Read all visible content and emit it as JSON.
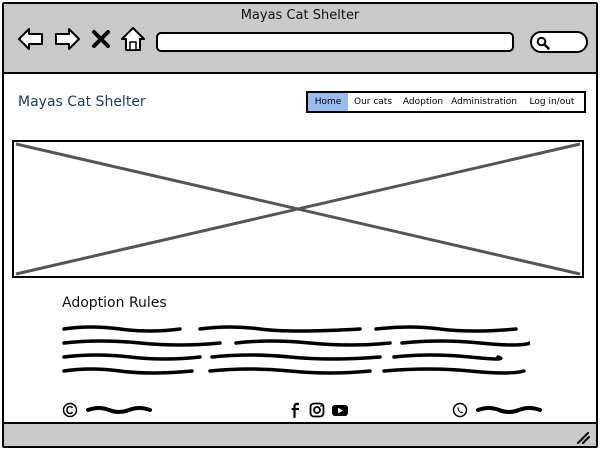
{
  "window": {
    "title": "Mayas Cat Shelter"
  },
  "browser": {
    "address_value": "",
    "icons": [
      "back-arrow-icon",
      "forward-arrow-icon",
      "close-x-icon",
      "home-icon",
      "search-icon"
    ]
  },
  "site": {
    "title": "Mayas Cat Shelter"
  },
  "menu": {
    "items": [
      {
        "label": "Home",
        "active": true
      },
      {
        "label": "Our cats",
        "active": false
      },
      {
        "label": "Adoption",
        "active": false
      },
      {
        "label": "Administration",
        "active": false
      },
      {
        "label": "Log in/out",
        "active": false
      }
    ]
  },
  "content": {
    "heading": "Adoption Rules"
  },
  "footer": {
    "icons": [
      "copyright-icon",
      "facebook-icon",
      "instagram-icon",
      "youtube-icon",
      "phone-icon"
    ]
  },
  "colors": {
    "chrome": "#c9c9c9",
    "site_title": "#1f3b66",
    "menu_active": "#99bbee"
  }
}
